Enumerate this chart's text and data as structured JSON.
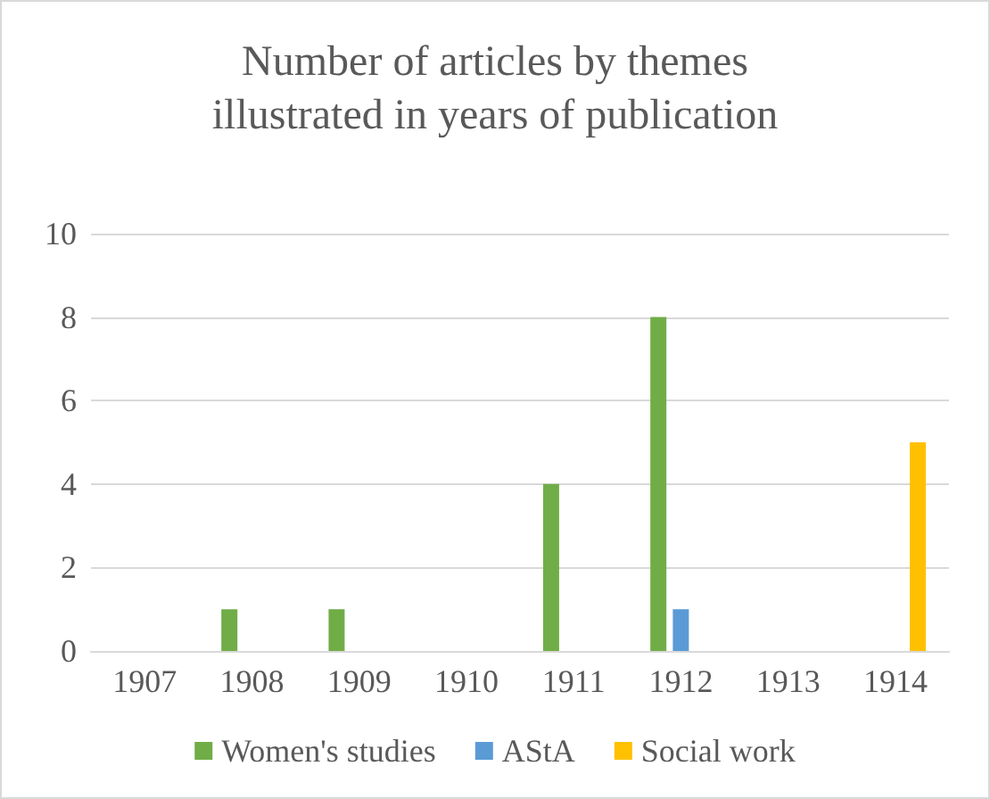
{
  "chart_data": {
    "type": "bar",
    "title": "Number of articles by themes\nillustrated in years of publication",
    "categories": [
      "1907",
      "1908",
      "1909",
      "1910",
      "1911",
      "1912",
      "1913",
      "1914"
    ],
    "series": [
      {
        "name": "Women's studies",
        "color": "#70ad47",
        "values": [
          0,
          1,
          1,
          0,
          4,
          8,
          0,
          0
        ]
      },
      {
        "name": "AStA",
        "color": "#5b9bd5",
        "values": [
          0,
          0,
          0,
          0,
          0,
          1,
          0,
          0
        ]
      },
      {
        "name": "Social work",
        "color": "#ffc000",
        "values": [
          0,
          0,
          0,
          0,
          0,
          0,
          0,
          5
        ]
      }
    ],
    "ylim": [
      0,
      10
    ],
    "yticks": [
      0,
      2,
      4,
      6,
      8,
      10
    ],
    "grid": "y",
    "legend": "bottom"
  }
}
